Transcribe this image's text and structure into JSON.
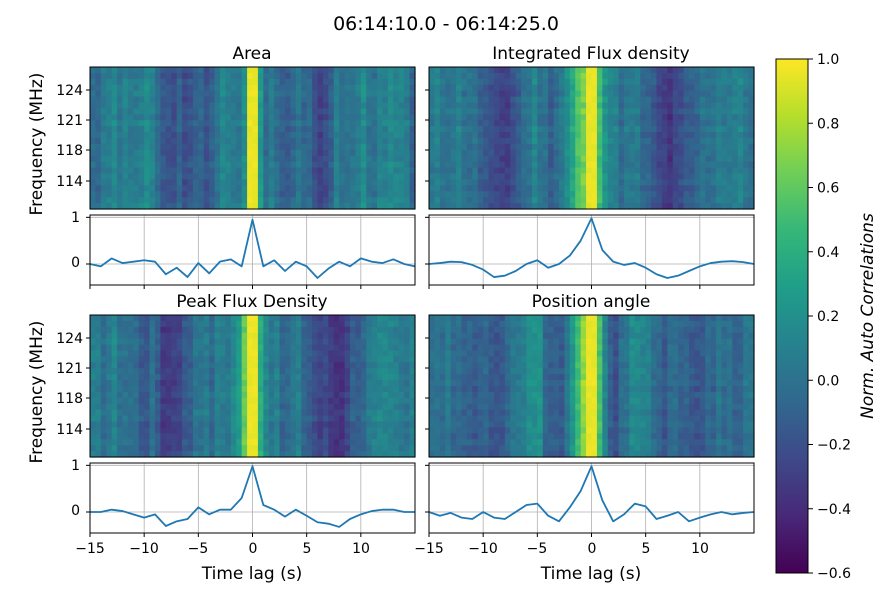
{
  "chart_data": {
    "type": "heatmap",
    "title": "06:14:10.0 - 06:14:25.0",
    "colorbar": {
      "label": "Norm. Auto Correlations",
      "range": [
        -0.6,
        1.0
      ],
      "ticks": [
        "1.0",
        "0.8",
        "0.6",
        "0.4",
        "0.2",
        "0.0",
        "−0.2",
        "−0.4",
        "−0.6"
      ],
      "colormap": [
        "#440154",
        "#482878",
        "#3e4989",
        "#31688e",
        "#26828e",
        "#1f9e89",
        "#35b779",
        "#6ece58",
        "#b5de2b",
        "#fde725"
      ]
    },
    "xlabel": "Time lag (s)",
    "ylabel": "Frequency (MHz)",
    "x_ticks": [
      "−15",
      "−10",
      "−5",
      "0",
      "5",
      "10"
    ],
    "y_ticks": [
      "124",
      "121",
      "118",
      "114"
    ],
    "line_y_ticks": [
      "1",
      "0"
    ],
    "xlim": [
      -15,
      15
    ],
    "line_ylim": [
      -0.45,
      1.05
    ],
    "line_color": "#1f77b4",
    "panels": [
      {
        "title": "Area",
        "lag_s": [
          -15,
          -14,
          -13,
          -12,
          -11,
          -10,
          -9,
          -8,
          -7,
          -6,
          -5,
          -4,
          -3,
          -2,
          -1,
          0,
          1,
          2,
          3,
          4,
          5,
          6,
          7,
          8,
          9,
          10,
          11,
          12,
          13,
          14,
          15
        ],
        "correlation": [
          0.0,
          -0.05,
          0.12,
          0.02,
          0.05,
          0.08,
          0.05,
          -0.22,
          -0.08,
          -0.28,
          0.02,
          -0.2,
          0.05,
          0.1,
          -0.05,
          0.95,
          -0.05,
          0.08,
          -0.15,
          0.05,
          -0.05,
          -0.3,
          -0.1,
          0.05,
          -0.05,
          0.12,
          0.05,
          0.02,
          0.1,
          0.0,
          -0.05
        ]
      },
      {
        "title": "Integrated Flux density",
        "lag_s": [
          -15,
          -14,
          -13,
          -12,
          -11,
          -10,
          -9,
          -8,
          -7,
          -6,
          -5,
          -4,
          -3,
          -2,
          -1,
          0,
          1,
          2,
          3,
          4,
          5,
          6,
          7,
          8,
          9,
          10,
          11,
          12,
          13,
          14,
          15
        ],
        "correlation": [
          0.0,
          0.02,
          0.05,
          0.04,
          -0.02,
          -0.12,
          -0.28,
          -0.25,
          -0.15,
          0.0,
          0.08,
          -0.08,
          0.0,
          0.18,
          0.5,
          0.98,
          0.3,
          0.05,
          -0.02,
          0.02,
          -0.08,
          -0.22,
          -0.3,
          -0.25,
          -0.15,
          -0.05,
          0.02,
          0.05,
          0.06,
          0.04,
          0.0
        ]
      },
      {
        "title": "Peak Flux Density",
        "lag_s": [
          -15,
          -14,
          -13,
          -12,
          -11,
          -10,
          -9,
          -8,
          -7,
          -6,
          -5,
          -4,
          -3,
          -2,
          -1,
          0,
          1,
          2,
          3,
          4,
          5,
          6,
          7,
          8,
          9,
          10,
          11,
          12,
          13,
          14,
          15
        ],
        "correlation": [
          0.0,
          0.0,
          0.05,
          0.02,
          -0.05,
          -0.12,
          -0.05,
          -0.3,
          -0.2,
          -0.15,
          0.1,
          -0.05,
          0.05,
          0.05,
          0.3,
          0.98,
          0.15,
          0.05,
          -0.1,
          0.05,
          -0.08,
          -0.22,
          -0.25,
          -0.32,
          -0.15,
          -0.05,
          0.02,
          0.05,
          0.05,
          0.0,
          0.0
        ]
      },
      {
        "title": "Position angle",
        "lag_s": [
          -15,
          -14,
          -13,
          -12,
          -11,
          -10,
          -9,
          -8,
          -7,
          -6,
          -5,
          -4,
          -3,
          -2,
          -1,
          0,
          1,
          2,
          3,
          4,
          5,
          6,
          7,
          8,
          9,
          10,
          11,
          12,
          13,
          14,
          15
        ],
        "correlation": [
          0.0,
          -0.08,
          -0.02,
          -0.12,
          -0.15,
          0.0,
          -0.12,
          -0.15,
          0.0,
          0.15,
          0.18,
          -0.08,
          -0.2,
          0.1,
          0.45,
          0.98,
          0.25,
          -0.2,
          -0.05,
          0.18,
          0.12,
          -0.15,
          -0.08,
          0.0,
          -0.2,
          -0.12,
          -0.05,
          0.0,
          -0.05,
          -0.02,
          0.0
        ]
      }
    ]
  }
}
